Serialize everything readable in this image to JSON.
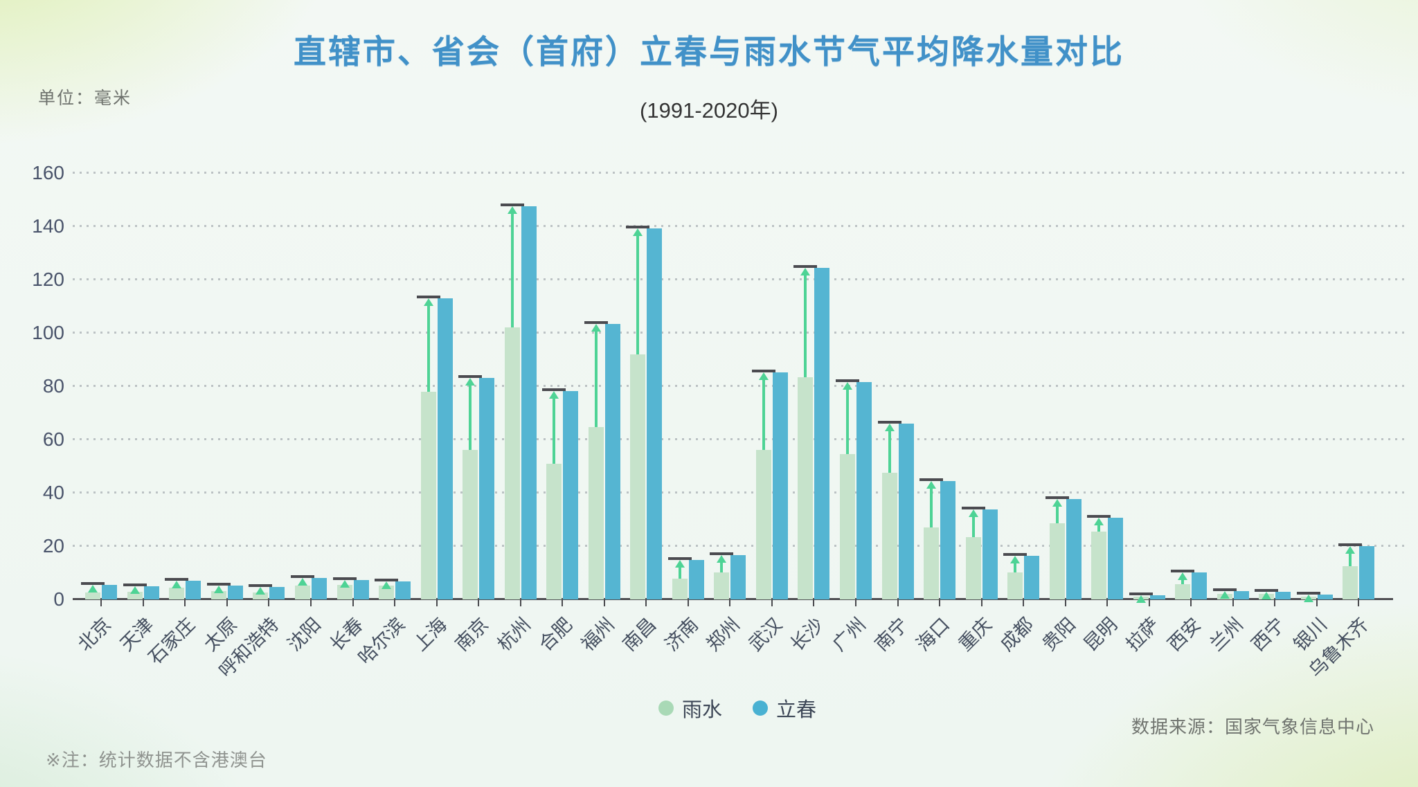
{
  "meta": {
    "title": "直辖市、省会（首府）立春与雨水节气平均降水量对比",
    "subtitle": "(1991-2020年)",
    "unit_label": "单位：毫米",
    "note": "※注：统计数据不含港澳台",
    "source": "数据来源：国家气象信息中心"
  },
  "legend": [
    {
      "label": "雨水",
      "color": "#a9d9b6"
    },
    {
      "label": "立春",
      "color": "#49b1d2"
    }
  ],
  "colors": {
    "rain_water_bar": "#c6e3cb",
    "start_of_spring_bar": "#55b5d2",
    "increase_arrow": "#4ed395",
    "cap_line": "#4b4b50",
    "title": "#4191c8",
    "gridline": "#b2b9bc",
    "axis": "#4e4e52"
  },
  "chart_data": {
    "type": "bar",
    "title": "直辖市、省会（首府）立春与雨水节气平均降水量对比",
    "subtitle": "(1991-2020年)",
    "ylabel": "单位：毫米",
    "ylim": [
      0,
      160
    ],
    "yticks": [
      0,
      20,
      40,
      60,
      80,
      100,
      120,
      140,
      160
    ],
    "grid": "horizontal dotted",
    "legend_position": "bottom",
    "annotation": "green upward arrow with dark cap marks rise from 雨水 bar top to 立春 bar value",
    "categories": [
      "北京",
      "天津",
      "石家庄",
      "太原",
      "呼和浩特",
      "沈阳",
      "长春",
      "哈尔滨",
      "上海",
      "南京",
      "杭州",
      "合肥",
      "福州",
      "南昌",
      "济南",
      "郑州",
      "武汉",
      "长沙",
      "广州",
      "南宁",
      "海口",
      "重庆",
      "成都",
      "贵阳",
      "昆明",
      "拉萨",
      "西安",
      "兰州",
      "西宁",
      "银川",
      "乌鲁木齐"
    ],
    "series": [
      {
        "name": "雨水",
        "color": "#c6e3cb",
        "values": [
          2.5,
          2.8,
          4.4,
          3.2,
          2.7,
          5.2,
          5.4,
          5.2,
          78.0,
          56.0,
          102.0,
          51.0,
          64.7,
          92.0,
          7.8,
          10.2,
          56.0,
          83.5,
          54.6,
          47.5,
          26.9,
          23.4,
          10.1,
          28.6,
          25.5,
          1.0,
          5.6,
          2.0,
          2.2,
          1.0,
          12.4
        ]
      },
      {
        "name": "立春",
        "color": "#55b5d2",
        "values": [
          5.5,
          5.0,
          7.0,
          5.2,
          4.6,
          8.1,
          7.4,
          6.7,
          112.9,
          83.0,
          147.6,
          78.3,
          103.3,
          139.1,
          14.7,
          16.7,
          85.2,
          124.4,
          81.5,
          65.9,
          44.5,
          33.9,
          16.3,
          37.6,
          30.7,
          1.6,
          10.2,
          3.1,
          2.9,
          1.7,
          20.0
        ]
      }
    ]
  }
}
